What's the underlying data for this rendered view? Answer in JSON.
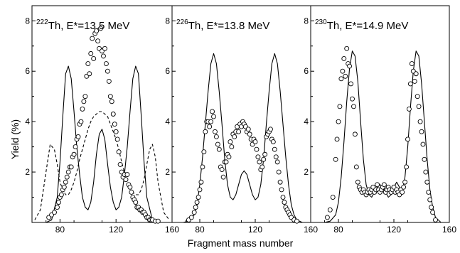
{
  "chart_data": {
    "type": "line",
    "xlabel": "Fragment mass number",
    "ylabel": "Yield (%)",
    "xlim": [
      60,
      160
    ],
    "ylim": [
      0,
      8.6
    ],
    "x_ticks": [
      80,
      120,
      160
    ],
    "y_ticks": [
      2,
      4,
      6,
      8
    ],
    "grid": false,
    "legend": "none",
    "panels": [
      {
        "title_mass": "222",
        "title_rest": "Th, E*=13.5 MeV",
        "series": [
          {
            "style": "solid-line",
            "x": [
              70,
              74,
              78,
              80,
              82,
              84,
              86,
              88,
              90,
              92,
              94,
              96,
              98,
              100,
              102,
              104,
              106,
              108,
              110,
              112,
              114,
              116,
              118,
              120,
              122,
              124,
              126,
              128,
              130,
              132,
              134,
              136,
              138,
              140,
              142,
              146,
              150,
              155
            ],
            "y": [
              0,
              0.1,
              1.0,
              2.4,
              4.2,
              5.9,
              6.2,
              5.7,
              4.4,
              3.0,
              1.9,
              1.0,
              0.6,
              0.5,
              0.8,
              1.6,
              2.7,
              3.5,
              3.7,
              3.3,
              2.3,
              1.4,
              0.8,
              0.5,
              0.6,
              1.0,
              1.9,
              3.0,
              4.4,
              5.7,
              6.2,
              5.9,
              4.2,
              2.4,
              1.0,
              0.1,
              0,
              0
            ]
          },
          {
            "style": "dashed-line",
            "x": [
              62,
              66,
              70,
              73,
              76,
              78,
              80,
              82,
              84,
              86,
              88,
              90,
              92,
              94,
              96,
              98,
              100,
              102,
              104,
              106,
              108,
              110,
              112,
              114,
              116,
              118,
              120,
              122,
              124,
              126,
              128,
              130,
              132,
              134,
              136,
              138,
              140,
              142,
              144,
              146,
              148,
              150,
              154,
              158
            ],
            "y": [
              0.1,
              0.5,
              2.0,
              3.1,
              2.9,
              2.3,
              1.6,
              1.3,
              1.1,
              1.1,
              1.3,
              1.6,
              2.0,
              2.5,
              2.9,
              3.3,
              3.7,
              4.0,
              4.2,
              4.3,
              4.4,
              4.4,
              4.3,
              4.2,
              3.9,
              3.6,
              3.3,
              2.9,
              2.4,
              2.0,
              1.7,
              1.4,
              1.2,
              1.1,
              1.1,
              1.3,
              1.7,
              2.3,
              2.9,
              3.1,
              2.6,
              1.6,
              0.4,
              0.1
            ]
          },
          {
            "style": "open-circles",
            "x": [
              72,
              74,
              76,
              78,
              79,
              80,
              81,
              82,
              83,
              84,
              85,
              86,
              87,
              88,
              89,
              90,
              91,
              92,
              93,
              94,
              95,
              96,
              97,
              98,
              99,
              100,
              101,
              102,
              103,
              104,
              105,
              106,
              107,
              108,
              109,
              110,
              111,
              112,
              113,
              114,
              115,
              116,
              117,
              118,
              119,
              120,
              121,
              122,
              123,
              124,
              125,
              126,
              127,
              128,
              129,
              130,
              131,
              132,
              133,
              134,
              135,
              136,
              137,
              138,
              139,
              140,
              141,
              142,
              143,
              144,
              145,
              146,
              148,
              150
            ],
            "y": [
              0.2,
              0.3,
              0.4,
              0.6,
              0.8,
              1.0,
              1.1,
              1.3,
              1.4,
              1.6,
              1.8,
              2.0,
              2.2,
              2.2,
              2.6,
              2.7,
              3.0,
              3.3,
              3.4,
              3.9,
              4.0,
              4.5,
              4.8,
              5.0,
              5.8,
              6.3,
              5.9,
              6.7,
              7.3,
              6.5,
              7.5,
              7.6,
              7.2,
              6.9,
              7.7,
              6.8,
              6.6,
              6.9,
              6.3,
              6.0,
              5.6,
              5.0,
              4.8,
              4.3,
              3.9,
              3.6,
              3.3,
              2.8,
              2.3,
              2.0,
              1.8,
              1.9,
              1.7,
              1.9,
              1.5,
              1.4,
              1.2,
              1.0,
              0.9,
              0.8,
              0.6,
              0.6,
              0.5,
              0.5,
              0.4,
              0.4,
              0.3,
              0.2,
              0.2,
              0.1,
              0.1,
              0.1,
              0.05,
              0.05
            ]
          }
        ]
      },
      {
        "title_mass": "226",
        "title_rest": "Th, E*=13.8 MeV",
        "series": [
          {
            "style": "solid-line",
            "x": [
              68,
              72,
              76,
              78,
              80,
              82,
              84,
              86,
              88,
              90,
              92,
              94,
              96,
              98,
              100,
              102,
              104,
              106,
              108,
              110,
              112,
              114,
              116,
              118,
              120,
              122,
              124,
              126,
              128,
              130,
              132,
              134,
              136,
              138,
              140,
              142,
              144,
              146,
              148,
              150,
              154,
              158
            ],
            "y": [
              0,
              0.05,
              0.3,
              0.7,
              1.5,
              2.6,
              3.9,
              5.2,
              6.3,
              6.7,
              6.3,
              5.2,
              3.9,
              2.5,
              1.5,
              1.0,
              0.9,
              1.1,
              1.5,
              1.9,
              2.05,
              1.9,
              1.5,
              1.1,
              0.9,
              1.0,
              1.5,
              2.5,
              3.9,
              5.2,
              6.3,
              6.7,
              6.3,
              5.2,
              3.9,
              2.6,
              1.5,
              0.7,
              0.3,
              0.1,
              0,
              0
            ]
          },
          {
            "style": "open-circles",
            "x": [
              72,
              74,
              76,
              77,
              78,
              79,
              80,
              81,
              82,
              83,
              84,
              85,
              86,
              87,
              88,
              89,
              90,
              91,
              92,
              93,
              94,
              95,
              96,
              97,
              98,
              99,
              100,
              101,
              102,
              103,
              104,
              105,
              106,
              107,
              108,
              109,
              110,
              111,
              112,
              113,
              114,
              115,
              116,
              117,
              118,
              119,
              120,
              121,
              122,
              123,
              124,
              125,
              126,
              127,
              128,
              129,
              130,
              131,
              132,
              133,
              134,
              135,
              136,
              137,
              138,
              139,
              140,
              141,
              142,
              143,
              144,
              145,
              146,
              148,
              150
            ],
            "y": [
              0.1,
              0.2,
              0.4,
              0.6,
              0.8,
              1.0,
              1.3,
              1.6,
              2.2,
              2.8,
              3.6,
              4.0,
              4.0,
              3.8,
              4.0,
              4.4,
              4.2,
              3.6,
              3.4,
              3.1,
              2.9,
              2.2,
              2.1,
              1.8,
              2.4,
              2.4,
              2.7,
              2.6,
              3.2,
              3.0,
              3.5,
              3.4,
              3.6,
              3.8,
              3.6,
              3.9,
              3.8,
              4.0,
              3.9,
              3.8,
              3.6,
              3.7,
              3.5,
              3.3,
              3.1,
              3.3,
              3.2,
              2.9,
              2.6,
              2.4,
              2.1,
              2.2,
              2.5,
              2.7,
              3.4,
              3.5,
              3.6,
              3.7,
              3.3,
              3.2,
              2.9,
              2.6,
              2.4,
              2.0,
              1.6,
              1.3,
              1.0,
              0.8,
              0.6,
              0.5,
              0.4,
              0.3,
              0.2,
              0.1,
              0.05
            ]
          }
        ]
      },
      {
        "title_mass": "230",
        "title_rest": "Th, E*=14.9 MeV",
        "series": [
          {
            "style": "solid-line",
            "x": [
              70,
              74,
              78,
              80,
              82,
              84,
              86,
              88,
              90,
              92,
              94,
              96,
              98,
              100,
              102,
              104,
              106,
              108,
              110,
              112,
              114,
              116,
              118,
              120,
              122,
              124,
              126,
              128,
              130,
              132,
              134,
              136,
              138,
              140,
              142,
              144,
              146,
              148,
              150,
              154,
              158
            ],
            "y": [
              0,
              0.05,
              0.3,
              0.8,
              1.8,
              3.2,
              4.8,
              6.1,
              6.8,
              6.6,
              5.6,
              4.0,
              2.5,
              1.5,
              1.1,
              1.0,
              1.2,
              1.4,
              1.5,
              1.4,
              1.2,
              1.0,
              1.1,
              1.4,
              1.6,
              1.4,
              1.2,
              1.8,
              3.0,
              4.6,
              6.0,
              6.8,
              6.6,
              5.5,
              4.0,
              2.5,
              1.3,
              0.6,
              0.2,
              0,
              0
            ]
          },
          {
            "style": "open-circles",
            "x": [
              72,
              74,
              76,
              78,
              79,
              80,
              81,
              82,
              83,
              84,
              85,
              86,
              87,
              88,
              89,
              90,
              91,
              92,
              93,
              94,
              95,
              96,
              97,
              98,
              99,
              100,
              101,
              102,
              103,
              104,
              105,
              106,
              107,
              108,
              109,
              110,
              111,
              112,
              113,
              114,
              115,
              116,
              117,
              118,
              119,
              120,
              121,
              122,
              123,
              124,
              125,
              126,
              127,
              128,
              129,
              130,
              131,
              132,
              133,
              134,
              135,
              136,
              137,
              138,
              139,
              140,
              141,
              142,
              143,
              144,
              145,
              146,
              147,
              148,
              150
            ],
            "y": [
              0.2,
              0.5,
              1.0,
              2.5,
              3.3,
              4.0,
              4.6,
              5.7,
              6.0,
              6.5,
              5.8,
              6.9,
              6.3,
              6.2,
              5.5,
              4.9,
              4.6,
              3.5,
              2.2,
              1.6,
              1.4,
              1.3,
              1.2,
              1.3,
              1.2,
              1.1,
              1.2,
              1.3,
              1.2,
              1.3,
              1.4,
              1.2,
              1.3,
              1.5,
              1.3,
              1.2,
              1.3,
              1.4,
              1.5,
              1.2,
              1.3,
              1.4,
              1.3,
              1.2,
              1.3,
              1.4,
              1.2,
              1.3,
              1.2,
              1.1,
              1.3,
              1.2,
              1.4,
              1.6,
              2.2,
              3.3,
              4.5,
              5.5,
              6.3,
              6.0,
              5.6,
              5.9,
              5.0,
              4.6,
              4.0,
              3.6,
              3.1,
              2.5,
              2.0,
              1.6,
              1.2,
              0.9,
              0.6,
              0.4,
              0.1
            ]
          }
        ]
      }
    ]
  }
}
